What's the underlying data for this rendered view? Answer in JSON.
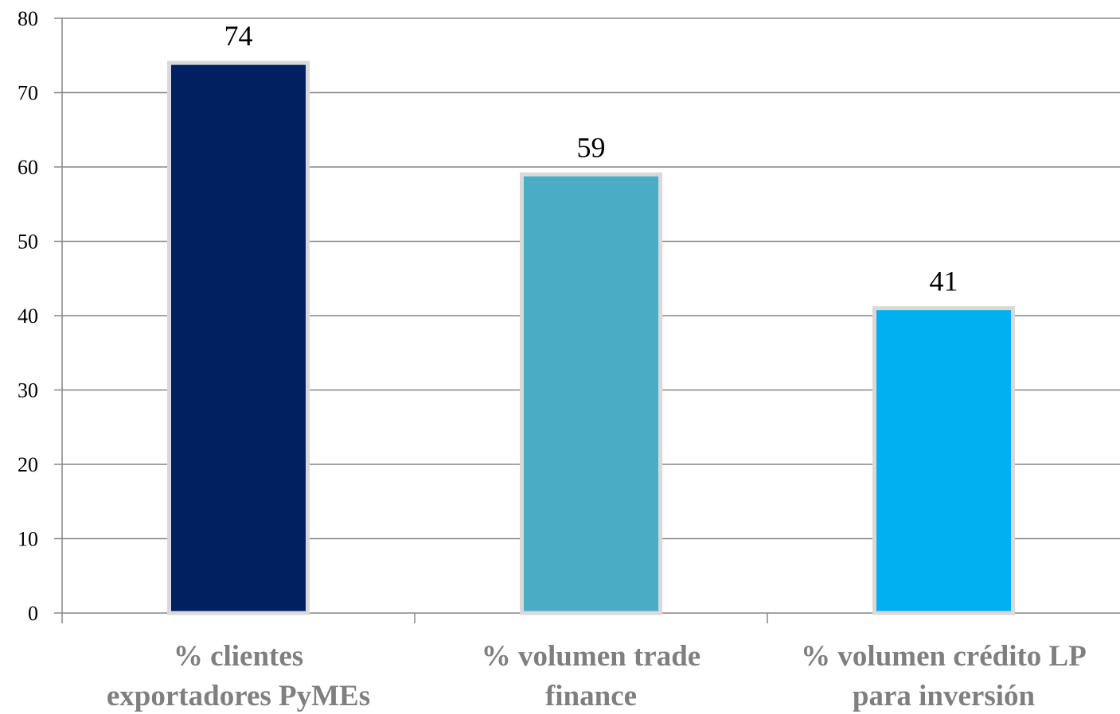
{
  "chart_data": {
    "type": "bar",
    "title": "",
    "xlabel": "",
    "ylabel": "",
    "ylim": [
      0,
      80
    ],
    "yticks": [
      0,
      10,
      20,
      30,
      40,
      50,
      60,
      70,
      80
    ],
    "grid": true,
    "legend": "none",
    "categories": [
      [
        "% clientes",
        "exportadores PyMEs"
      ],
      [
        "% volumen trade",
        "finance"
      ],
      [
        "% volumen crédito LP",
        "para inversión"
      ]
    ],
    "values": [
      74,
      59,
      41
    ],
    "data_labels": [
      "74",
      "59",
      "41"
    ],
    "bar_colors": [
      "#002060",
      "#4bacc6",
      "#00b0f0"
    ],
    "bar_border_color": "#d9d9d9",
    "gridline_color": "#868686",
    "category_label_color": "#7f7f7f"
  }
}
